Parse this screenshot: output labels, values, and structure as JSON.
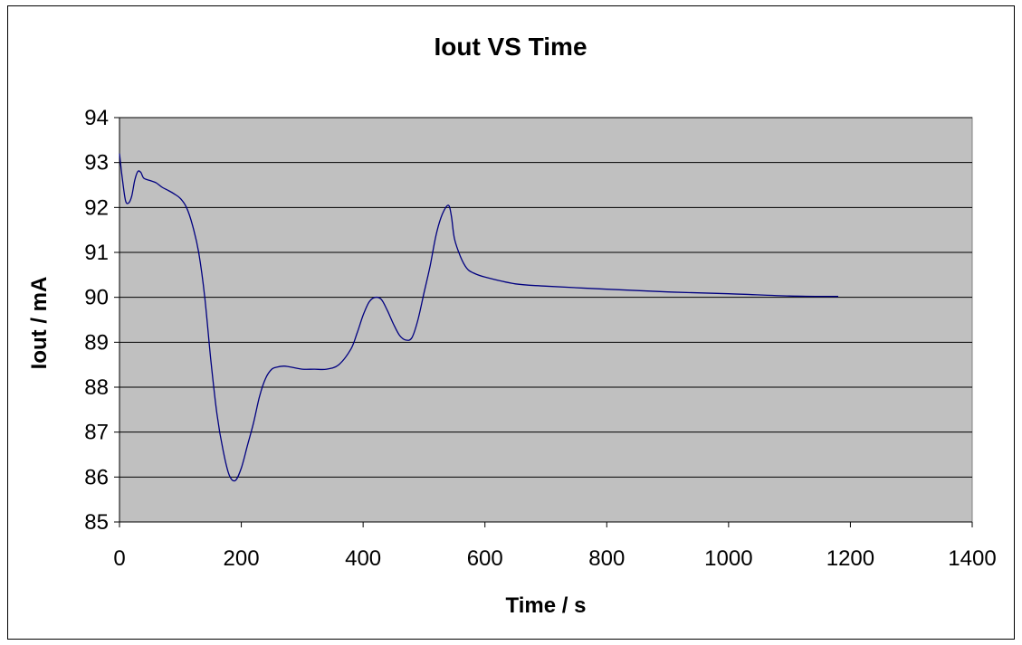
{
  "chart_data": {
    "type": "line",
    "title": "Iout VS Time",
    "xlabel": "Time / s",
    "ylabel": "Iout / mA",
    "xlim": [
      0,
      1400
    ],
    "ylim": [
      85,
      94
    ],
    "x_ticks": [
      0,
      200,
      400,
      600,
      800,
      1000,
      1200,
      1400
    ],
    "y_ticks": [
      85,
      86,
      87,
      88,
      89,
      90,
      91,
      92,
      93,
      94
    ],
    "grid": "horizontal",
    "plot_background": "#c0c0c0",
    "series_color": "#000080",
    "series": [
      {
        "values": [
          [
            0,
            93.2
          ],
          [
            5,
            92.6
          ],
          [
            10,
            92.15
          ],
          [
            15,
            92.1
          ],
          [
            20,
            92.25
          ],
          [
            25,
            92.6
          ],
          [
            30,
            92.8
          ],
          [
            35,
            92.78
          ],
          [
            40,
            92.65
          ],
          [
            50,
            92.6
          ],
          [
            60,
            92.55
          ],
          [
            70,
            92.45
          ],
          [
            80,
            92.38
          ],
          [
            90,
            92.3
          ],
          [
            100,
            92.2
          ],
          [
            110,
            92.0
          ],
          [
            120,
            91.6
          ],
          [
            130,
            91.0
          ],
          [
            140,
            90.0
          ],
          [
            150,
            88.6
          ],
          [
            160,
            87.4
          ],
          [
            170,
            86.6
          ],
          [
            180,
            86.05
          ],
          [
            190,
            85.92
          ],
          [
            200,
            86.2
          ],
          [
            210,
            86.7
          ],
          [
            220,
            87.2
          ],
          [
            230,
            87.8
          ],
          [
            240,
            88.2
          ],
          [
            250,
            88.4
          ],
          [
            260,
            88.45
          ],
          [
            270,
            88.47
          ],
          [
            280,
            88.45
          ],
          [
            300,
            88.4
          ],
          [
            320,
            88.4
          ],
          [
            340,
            88.4
          ],
          [
            360,
            88.5
          ],
          [
            380,
            88.85
          ],
          [
            390,
            89.2
          ],
          [
            400,
            89.6
          ],
          [
            410,
            89.9
          ],
          [
            420,
            90.0
          ],
          [
            430,
            89.95
          ],
          [
            440,
            89.7
          ],
          [
            450,
            89.4
          ],
          [
            460,
            89.15
          ],
          [
            470,
            89.05
          ],
          [
            480,
            89.1
          ],
          [
            490,
            89.5
          ],
          [
            500,
            90.1
          ],
          [
            510,
            90.7
          ],
          [
            520,
            91.4
          ],
          [
            530,
            91.85
          ],
          [
            540,
            92.05
          ],
          [
            545,
            91.8
          ],
          [
            550,
            91.3
          ],
          [
            560,
            90.9
          ],
          [
            570,
            90.65
          ],
          [
            580,
            90.55
          ],
          [
            600,
            90.45
          ],
          [
            650,
            90.3
          ],
          [
            700,
            90.25
          ],
          [
            800,
            90.18
          ],
          [
            900,
            90.12
          ],
          [
            1000,
            90.08
          ],
          [
            1100,
            90.03
          ],
          [
            1180,
            90.02
          ]
        ]
      }
    ]
  }
}
